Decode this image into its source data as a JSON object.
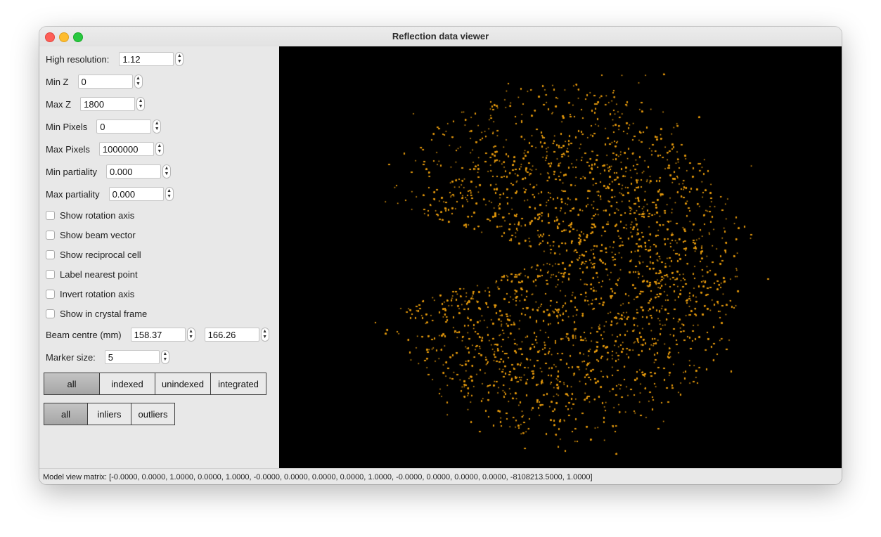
{
  "window": {
    "title": "Reflection data viewer"
  },
  "controls": {
    "high_resolution": {
      "label": "High resolution:",
      "value": "1.12"
    },
    "min_z": {
      "label": "Min Z",
      "value": "0"
    },
    "max_z": {
      "label": "Max Z",
      "value": "1800"
    },
    "min_pixels": {
      "label": "Min Pixels",
      "value": "0"
    },
    "max_pixels": {
      "label": "Max Pixels",
      "value": "1000000"
    },
    "min_partiality": {
      "label": "Min partiality",
      "value": "0.000"
    },
    "max_partiality": {
      "label": "Max partiality",
      "value": "0.000"
    },
    "checkboxes": [
      {
        "label": "Show rotation axis",
        "checked": false
      },
      {
        "label": "Show beam vector",
        "checked": false
      },
      {
        "label": "Show reciprocal cell",
        "checked": false
      },
      {
        "label": "Label nearest point",
        "checked": false
      },
      {
        "label": "Invert rotation axis",
        "checked": false
      },
      {
        "label": "Show in crystal frame",
        "checked": false
      }
    ],
    "beam_centre": {
      "label": "Beam centre (mm)",
      "x": "158.37",
      "y": "166.26"
    },
    "marker_size": {
      "label": "Marker size:",
      "value": "5"
    },
    "filter_group_1": [
      "all",
      "indexed",
      "unindexed",
      "integrated"
    ],
    "filter_group_1_selected": "all",
    "filter_group_2": [
      "all",
      "inliers",
      "outliers"
    ],
    "filter_group_2_selected": "all"
  },
  "plot": {
    "background": "#000000",
    "point_color": "#e49a10"
  },
  "status": {
    "text": "Model view matrix: [-0.0000, 0.0000, 1.0000, 0.0000, 1.0000, -0.0000, 0.0000, 0.0000, 0.0000, 1.0000, -0.0000, 0.0000, 0.0000, 0.0000, -8108213.5000, 1.0000]"
  }
}
